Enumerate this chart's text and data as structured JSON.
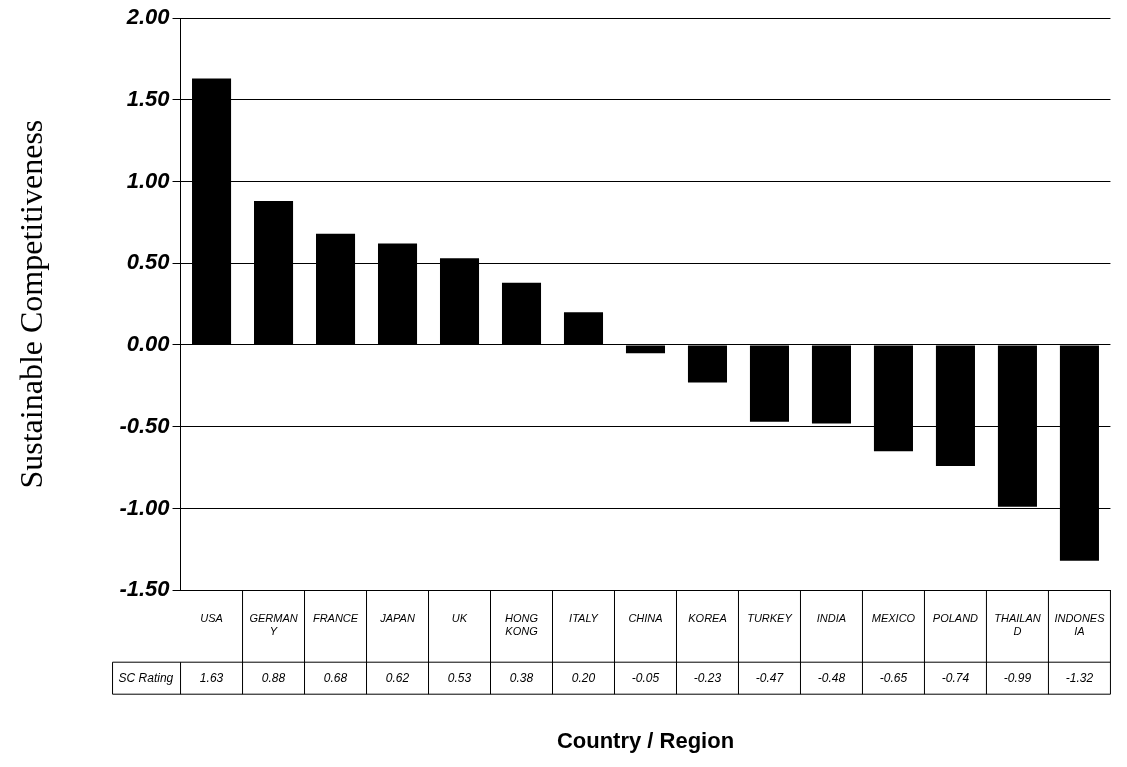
{
  "chart_data": {
    "type": "bar",
    "xlabel": "Country / Region",
    "ylabel": "Sustainable Competitiveness",
    "categories": [
      "USA",
      "GERMANY",
      "FRANCE",
      "JAPAN",
      "UK",
      "HONG KONG",
      "ITALY",
      "CHINA",
      "KOREA",
      "TURKEY",
      "INDIA",
      "MEXICO",
      "POLAND",
      "THAILAND",
      "INDONESIA"
    ],
    "series": [
      {
        "name": "SC Rating",
        "color": "#000000",
        "values": [
          1.63,
          0.88,
          0.68,
          0.62,
          0.53,
          0.38,
          0.2,
          -0.05,
          -0.23,
          -0.47,
          -0.48,
          -0.65,
          -0.74,
          -0.99,
          -1.32
        ]
      }
    ],
    "value_labels": [
      "1.63",
      "0.88",
      "0.68",
      "0.62",
      "0.53",
      "0.38",
      "0.20",
      "-0.05",
      "-0.23",
      "-0.47",
      "-0.48",
      "-0.65",
      "-0.74",
      "-0.99",
      "-1.32"
    ],
    "ylim": [
      -1.5,
      2.0
    ],
    "yticks": [
      {
        "value": -1.5,
        "label": "-1.50"
      },
      {
        "value": -1.0,
        "label": "-1.00"
      },
      {
        "value": -0.5,
        "label": "-0.50"
      },
      {
        "value": 0,
        "label": "0.00"
      },
      {
        "value": 0.5,
        "label": "0.50"
      },
      {
        "value": 1.0,
        "label": "1.00"
      },
      {
        "value": 1.5,
        "label": "1.50"
      },
      {
        "value": 2.0,
        "label": "2.00"
      }
    ],
    "grid": "y",
    "legend": false
  }
}
